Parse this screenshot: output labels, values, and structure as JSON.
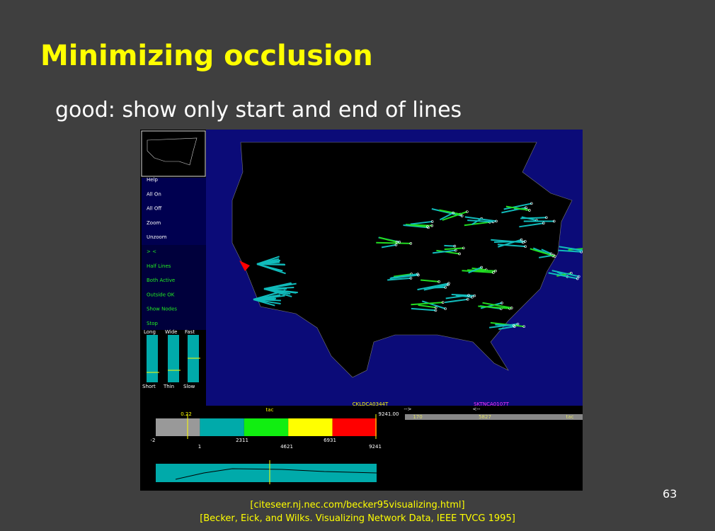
{
  "slide": {
    "title": "Minimizing occlusion",
    "subtitle": "good: show only start and end of lines",
    "page_number": "63",
    "citations": [
      "[citeseer.nj.nec.com/becker95visualizing.html]",
      "[Becker, Eick, and Wilks. Visualizing Network Data, IEEE TVCG 1995]"
    ]
  },
  "screenshot": {
    "menu": [
      "Help",
      "All On",
      "All Off",
      "Zoom",
      "Unzoom",
      "> <",
      "Half Lines",
      "Both Active",
      "Outside OK",
      "Show Nodes",
      "Stop"
    ],
    "sliders": {
      "top": [
        "Long",
        "Wide",
        "Fast"
      ],
      "bottom": [
        "Short",
        "Thin",
        "Slow"
      ]
    },
    "color_bar": {
      "marker": "0.22",
      "unit": "tac",
      "end_value": "9241.00",
      "upper_ticks": [
        "-2",
        "2311",
        "6931"
      ],
      "lower_ticks": [
        "1",
        "4621",
        "9241"
      ]
    },
    "link": {
      "from": "CKLDCA0344T",
      "from_arrow": "-->",
      "to": "SKTNCA0107T",
      "to_arrow": "<--",
      "bar": [
        "170",
        "5827",
        "tac"
      ]
    }
  }
}
